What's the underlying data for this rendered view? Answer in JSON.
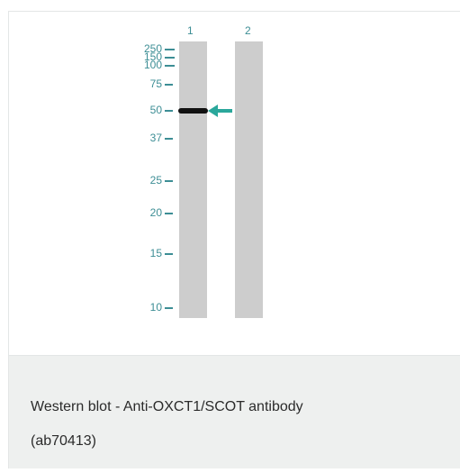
{
  "blot": {
    "lane_labels": [
      "1",
      "2"
    ],
    "markers": [
      "250",
      "150",
      "100",
      "75",
      "50",
      "37",
      "25",
      "20",
      "15",
      "10"
    ],
    "band_marker": "50",
    "arrow_color": "#2aa79b",
    "accent_color": "#3d8e95"
  },
  "caption": {
    "line1": "Western blot - Anti-OXCT1/SCOT antibody",
    "line2": "(ab70413)"
  }
}
